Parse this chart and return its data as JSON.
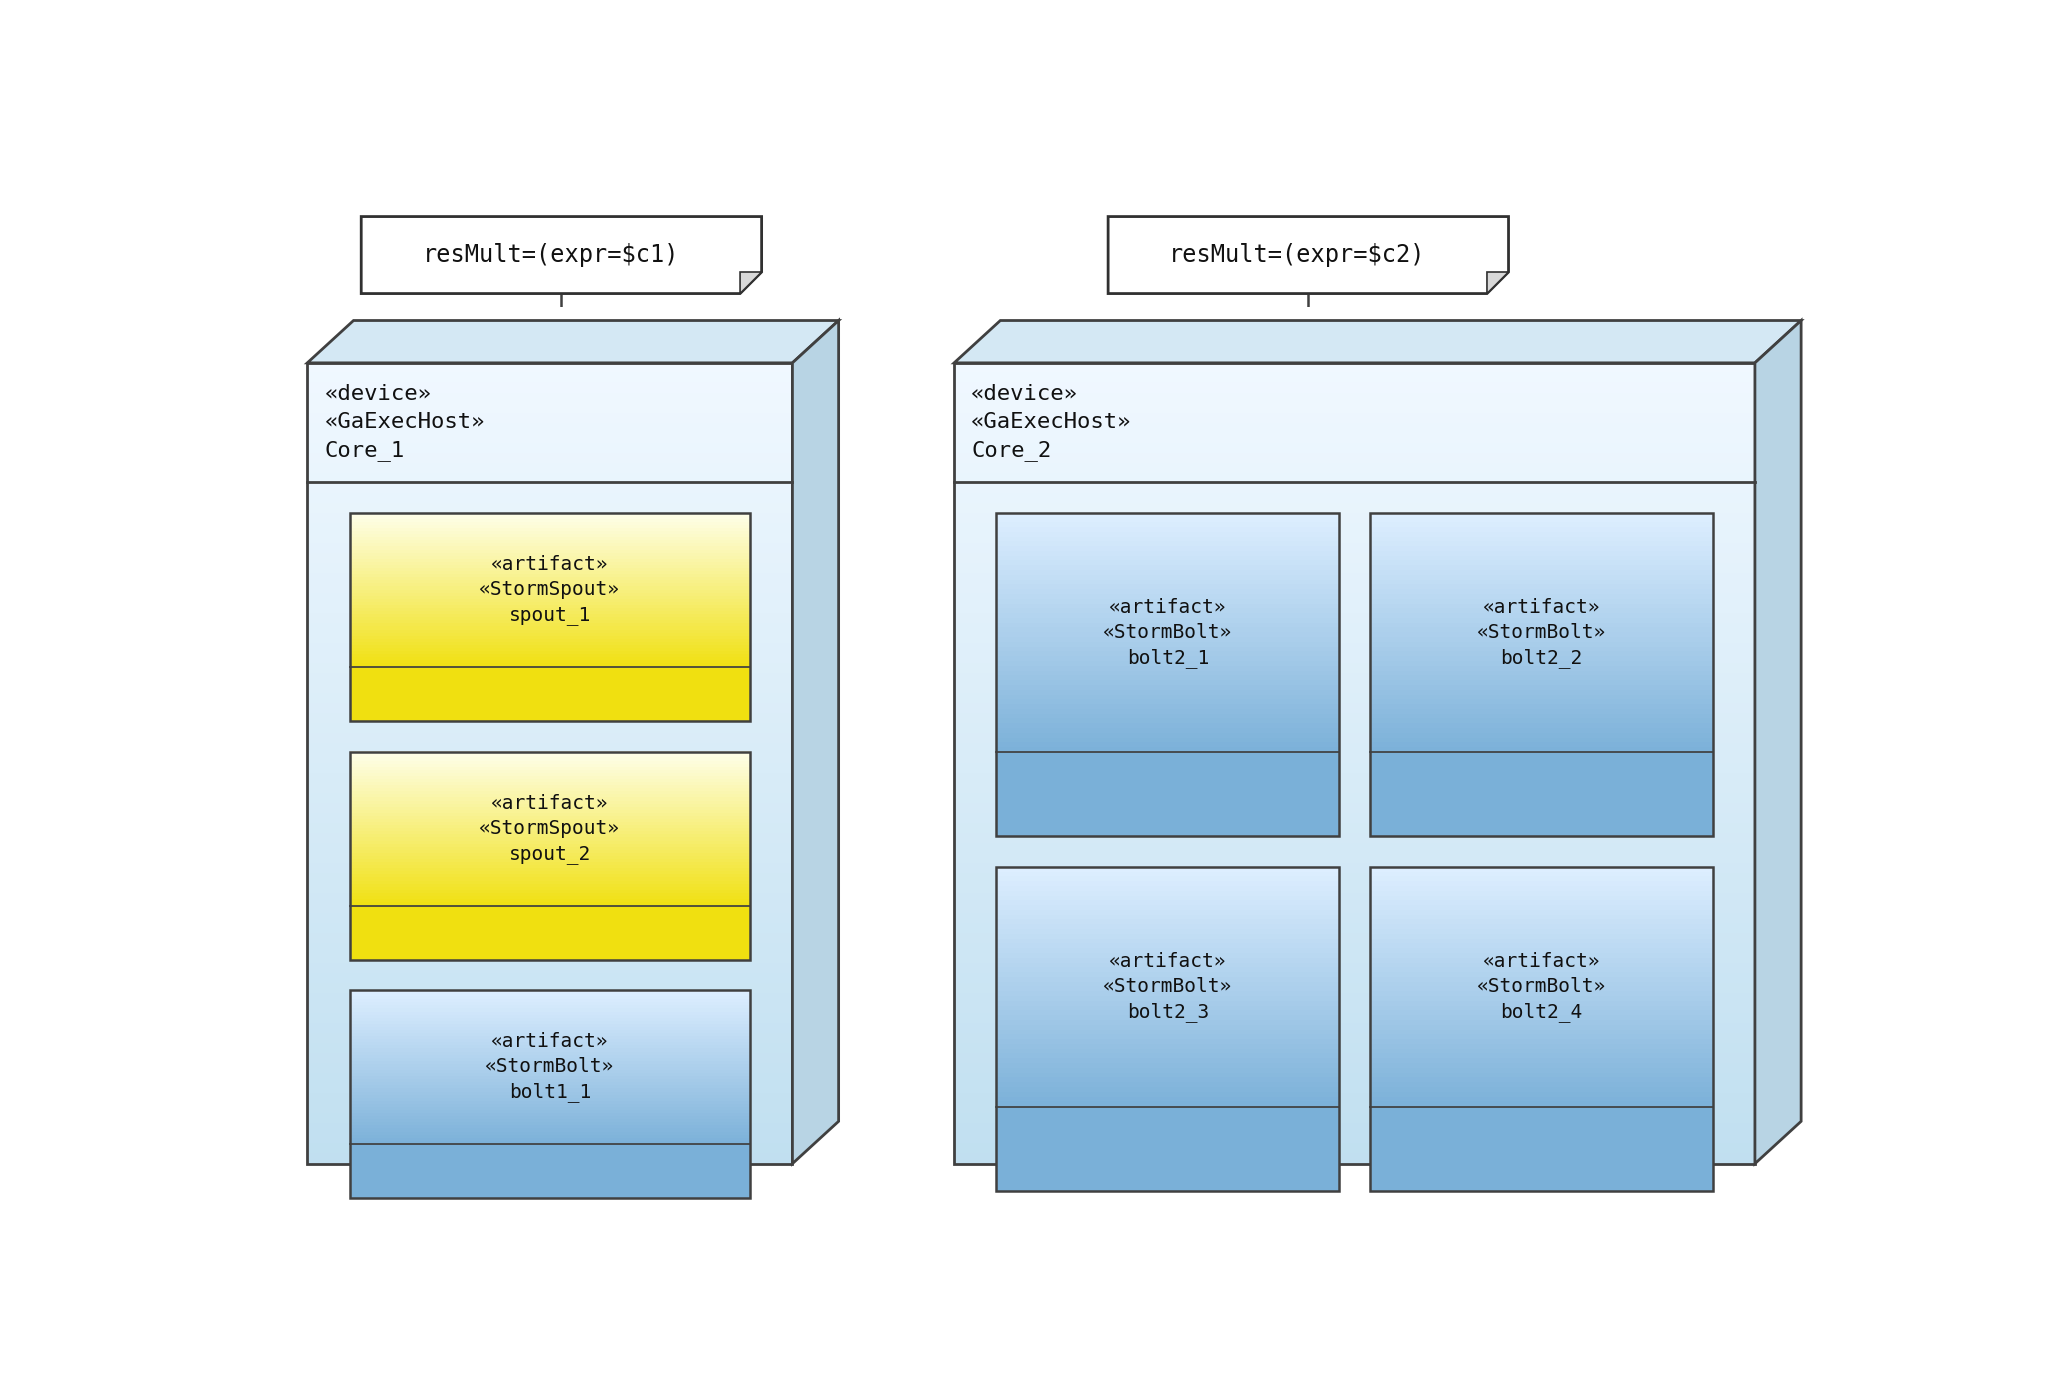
{
  "bg_color": "#ffffff",
  "note1_text": "resMult=(expr=$c1)",
  "note2_text": "resMult=(expr=$c2)",
  "core1_label": "«device»\n«GaExecHost»\nCore_1",
  "core2_label": "«device»\n«GaExecHost»\nCore_2",
  "spout1_lines": [
    "«artifact»",
    "«StormSpout»",
    "spout_1"
  ],
  "spout2_lines": [
    "«artifact»",
    "«StormSpout»",
    "spout_2"
  ],
  "bolt1_lines": [
    "«artifact»",
    "«StormBolt»",
    "bolt1_1"
  ],
  "bolt2_1_lines": [
    "«artifact»",
    "«StormBolt»",
    "bolt2_1"
  ],
  "bolt2_2_lines": [
    "«artifact»",
    "«StormBolt»",
    "bolt2_2"
  ],
  "bolt2_3_lines": [
    "«artifact»",
    "«StormBolt»",
    "bolt2_3"
  ],
  "bolt2_4_lines": [
    "«artifact»",
    "«StormBolt»",
    "bolt2_4"
  ],
  "spout_top": "#fefee8",
  "spout_bot": "#f0e010",
  "bolt_top": "#ddeeff",
  "bolt_bot": "#7ab0d8",
  "device_top": "#f0f8ff",
  "device_bot": "#c0dff0",
  "device_side": "#d0e8f4",
  "device_top_face": "#e0eef8",
  "note_font_size": 17,
  "label_font_size": 16,
  "artifact_font_size": 14
}
